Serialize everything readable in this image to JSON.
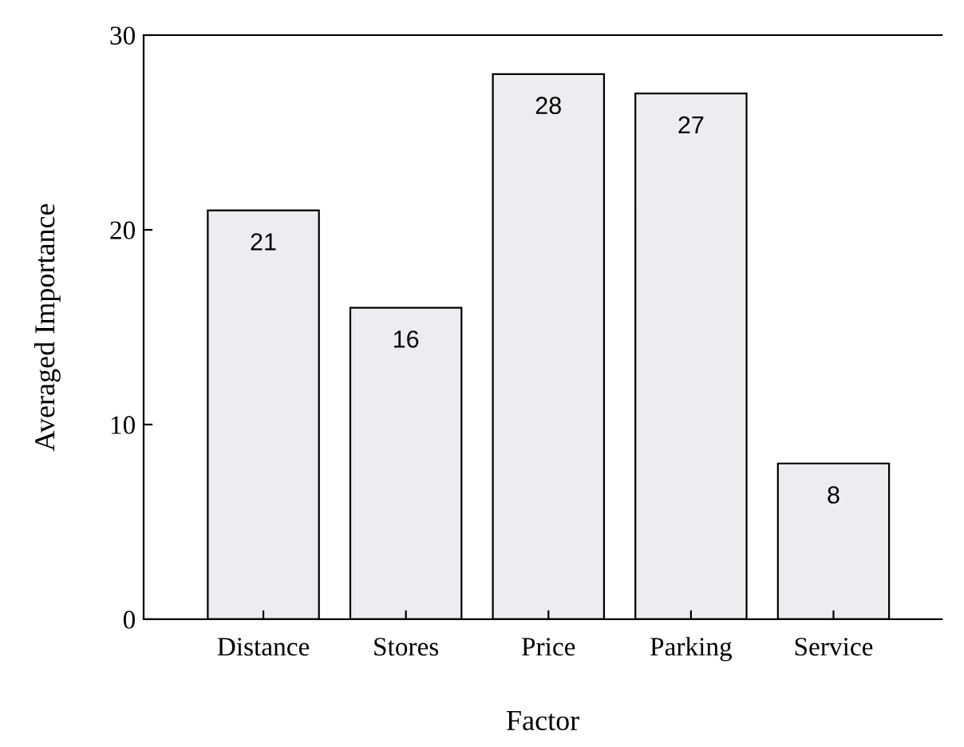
{
  "chart_data": {
    "type": "bar",
    "xlabel": "Factor",
    "ylabel": "Averaged Importance",
    "categories": [
      "Distance",
      "Stores",
      "Price",
      "Parking",
      "Service"
    ],
    "values": [
      21,
      16,
      28,
      27,
      8
    ],
    "color": "#ededf1",
    "ylim": [
      0,
      30
    ],
    "yticks": [
      0,
      10,
      20,
      30
    ],
    "grid": false,
    "data_labels": true
  }
}
